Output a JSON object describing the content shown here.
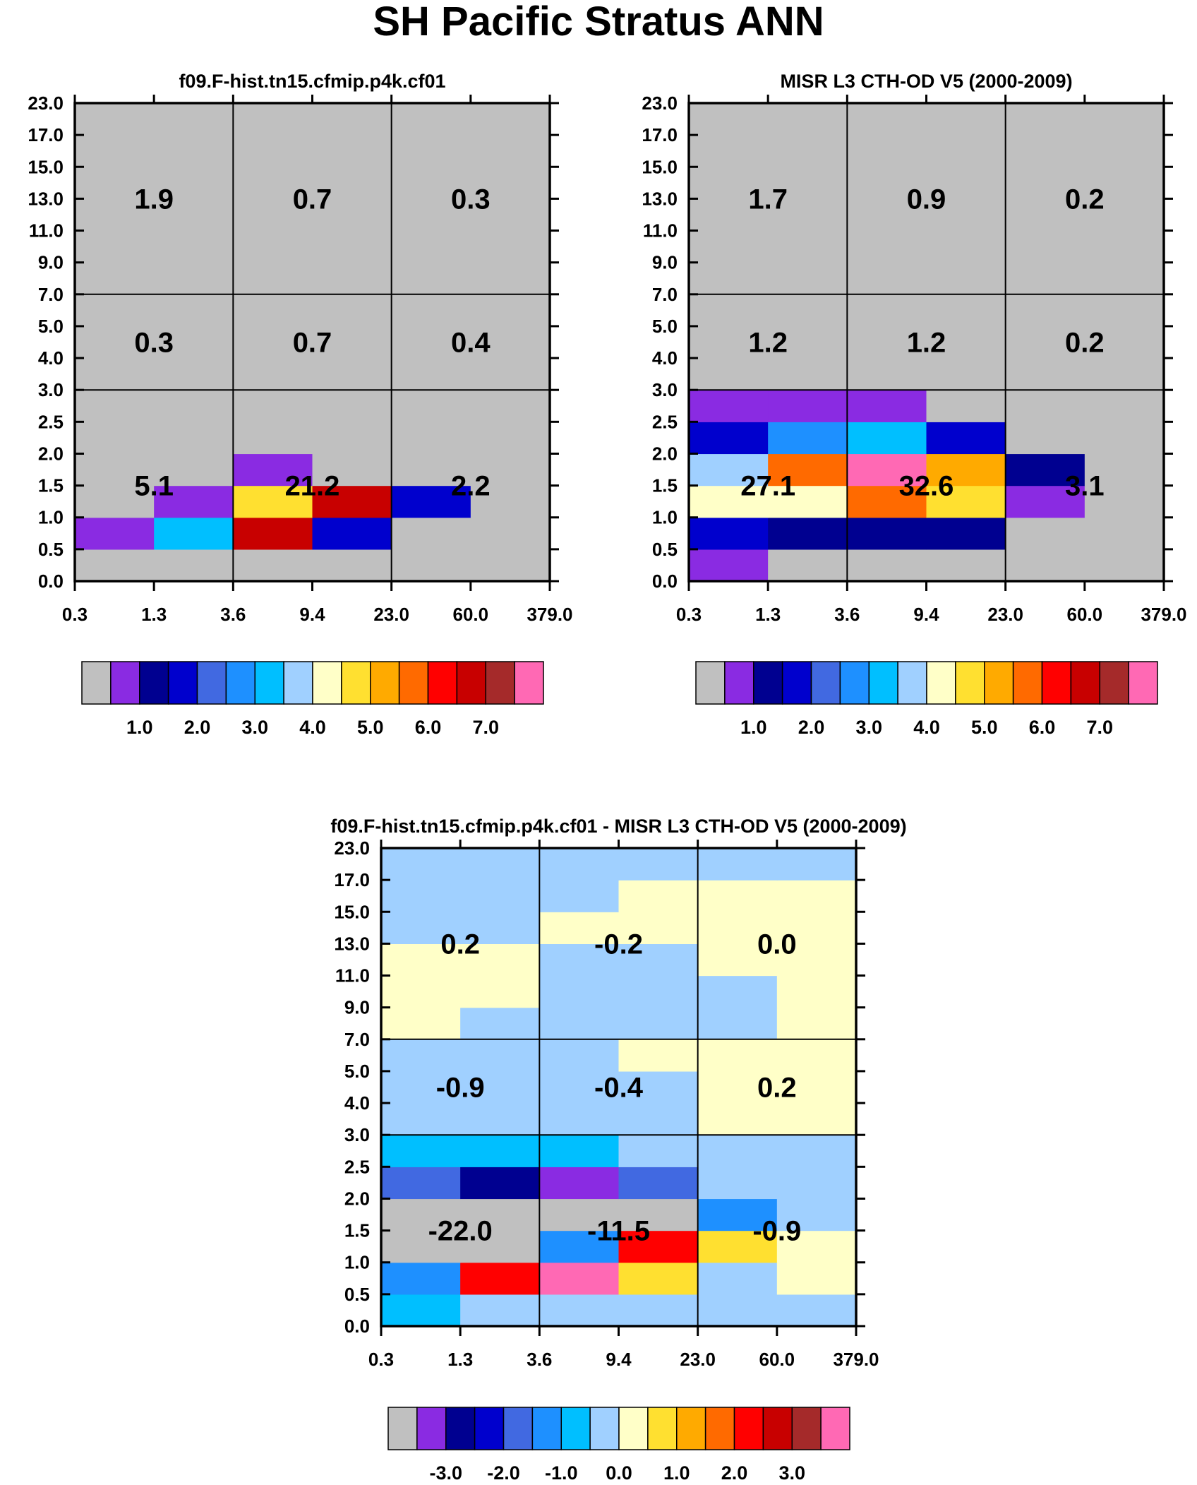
{
  "figure": {
    "title": "SH Pacific Stratus ANN"
  },
  "axes": {
    "x_ticks": [
      "0.3",
      "1.3",
      "3.6",
      "9.4",
      "23.0",
      "60.0",
      "379.0"
    ],
    "y_ticks": [
      "0.0",
      "0.5",
      "1.0",
      "1.5",
      "2.0",
      "2.5",
      "3.0",
      "4.0",
      "5.0",
      "7.0",
      "9.0",
      "11.0",
      "13.0",
      "15.0",
      "17.0",
      "23.0"
    ]
  },
  "colors": {
    "missing": "#c0c0c0",
    "palette": [
      "#c0c0c0",
      "#8a2be2",
      "#000090",
      "#0000cd",
      "#4169e1",
      "#1e90ff",
      "#00bfff",
      "#a0d0ff",
      "#ffffc8",
      "#ffe030",
      "#ffaa00",
      "#ff6a00",
      "#ff0000",
      "#c80000",
      "#a52a2a",
      "#ff69b4"
    ]
  },
  "chart_data": [
    {
      "type": "heatmap",
      "title": "f09.F-hist.tn15.cfmip.p4k.cf01",
      "xlabel": "",
      "ylabel": "",
      "x_bins": [
        "0.3",
        "1.3",
        "3.6",
        "9.4",
        "23.0",
        "60.0",
        "379.0"
      ],
      "y_bins": [
        "0.0",
        "0.5",
        "1.0",
        "1.5",
        "2.0",
        "2.5",
        "3.0",
        "4.0",
        "5.0",
        "7.0",
        "9.0",
        "11.0",
        "13.0",
        "15.0",
        "17.0",
        "23.0"
      ],
      "cells_colour_index_bottom_to_top": [
        [
          0,
          0,
          0,
          0,
          0,
          0
        ],
        [
          1,
          6,
          13,
          3,
          0,
          0
        ],
        [
          0,
          1,
          9,
          13,
          3,
          0
        ],
        [
          0,
          0,
          1,
          0,
          0,
          0
        ],
        [
          0,
          0,
          0,
          0,
          0,
          0
        ],
        [
          0,
          0,
          0,
          0,
          0,
          0
        ],
        [
          0,
          0,
          0,
          0,
          0,
          0
        ],
        [
          0,
          0,
          0,
          0,
          0,
          0
        ],
        [
          0,
          0,
          0,
          0,
          0,
          0
        ],
        [
          0,
          0,
          0,
          0,
          0,
          0
        ],
        [
          0,
          0,
          0,
          0,
          0,
          0
        ],
        [
          0,
          0,
          0,
          0,
          0,
          0
        ],
        [
          0,
          0,
          0,
          0,
          0,
          0
        ],
        [
          0,
          0,
          0,
          0,
          0,
          0
        ],
        [
          0,
          0,
          0,
          0,
          0,
          0
        ]
      ],
      "group_labels": [
        {
          "values": [
            "5.1",
            "21.2",
            "2.2"
          ]
        },
        {
          "values": [
            "0.3",
            "0.7",
            "0.4"
          ]
        },
        {
          "values": [
            "1.9",
            "0.7",
            "0.3"
          ]
        }
      ],
      "colorbar": {
        "levels": [
          "1.0",
          "2.0",
          "3.0",
          "4.0",
          "5.0",
          "6.0",
          "7.0"
        ],
        "colour_index": [
          0,
          1,
          2,
          3,
          4,
          5,
          6,
          7,
          8,
          9,
          10,
          11,
          12,
          13,
          14,
          15
        ]
      }
    },
    {
      "type": "heatmap",
      "title": "MISR L3 CTH-OD V5 (2000-2009)",
      "xlabel": "",
      "ylabel": "",
      "x_bins": [
        "0.3",
        "1.3",
        "3.6",
        "9.4",
        "23.0",
        "60.0",
        "379.0"
      ],
      "y_bins": [
        "0.0",
        "0.5",
        "1.0",
        "1.5",
        "2.0",
        "2.5",
        "3.0",
        "4.0",
        "5.0",
        "7.0",
        "9.0",
        "11.0",
        "13.0",
        "15.0",
        "17.0",
        "23.0"
      ],
      "cells_colour_index_bottom_to_top": [
        [
          1,
          0,
          0,
          0,
          0,
          0
        ],
        [
          3,
          2,
          2,
          2,
          0,
          0
        ],
        [
          8,
          8,
          11,
          9,
          1,
          0
        ],
        [
          7,
          11,
          15,
          10,
          2,
          0
        ],
        [
          3,
          5,
          6,
          3,
          0,
          0
        ],
        [
          1,
          1,
          1,
          0,
          0,
          0
        ],
        [
          0,
          0,
          0,
          0,
          0,
          0
        ],
        [
          0,
          0,
          0,
          0,
          0,
          0
        ],
        [
          0,
          0,
          0,
          0,
          0,
          0
        ],
        [
          0,
          0,
          0,
          0,
          0,
          0
        ],
        [
          0,
          0,
          0,
          0,
          0,
          0
        ],
        [
          0,
          0,
          0,
          0,
          0,
          0
        ],
        [
          0,
          0,
          0,
          0,
          0,
          0
        ],
        [
          0,
          0,
          0,
          0,
          0,
          0
        ],
        [
          0,
          0,
          0,
          0,
          0,
          0
        ]
      ],
      "group_labels": [
        {
          "values": [
            "27.1",
            "32.6",
            "3.1"
          ]
        },
        {
          "values": [
            "1.2",
            "1.2",
            "0.2"
          ]
        },
        {
          "values": [
            "1.7",
            "0.9",
            "0.2"
          ]
        }
      ],
      "colorbar": {
        "levels": [
          "1.0",
          "2.0",
          "3.0",
          "4.0",
          "5.0",
          "6.0",
          "7.0"
        ],
        "colour_index": [
          0,
          1,
          2,
          3,
          4,
          5,
          6,
          7,
          8,
          9,
          10,
          11,
          12,
          13,
          14,
          15
        ]
      }
    },
    {
      "type": "heatmap",
      "title": "f09.F-hist.tn15.cfmip.p4k.cf01 - MISR L3 CTH-OD V5 (2000-2009)",
      "xlabel": "",
      "ylabel": "",
      "x_bins": [
        "0.3",
        "1.3",
        "3.6",
        "9.4",
        "23.0",
        "60.0",
        "379.0"
      ],
      "y_bins": [
        "0.0",
        "0.5",
        "1.0",
        "1.5",
        "2.0",
        "2.5",
        "3.0",
        "4.0",
        "5.0",
        "7.0",
        "9.0",
        "11.0",
        "13.0",
        "15.0",
        "17.0",
        "23.0"
      ],
      "cells_colour_index_bottom_to_top": [
        [
          6,
          7,
          7,
          7,
          7,
          7
        ],
        [
          5,
          12,
          15,
          9,
          7,
          8
        ],
        [
          0,
          0,
          5,
          12,
          9,
          8
        ],
        [
          0,
          0,
          0,
          0,
          5,
          7
        ],
        [
          4,
          2,
          1,
          4,
          7,
          7
        ],
        [
          6,
          6,
          6,
          7,
          7,
          7
        ],
        [
          7,
          7,
          7,
          7,
          8,
          8
        ],
        [
          7,
          7,
          7,
          7,
          8,
          8
        ],
        [
          7,
          7,
          7,
          8,
          8,
          8
        ],
        [
          8,
          7,
          7,
          7,
          7,
          8
        ],
        [
          8,
          8,
          7,
          7,
          7,
          8
        ],
        [
          8,
          8,
          7,
          7,
          8,
          8
        ],
        [
          7,
          7,
          8,
          8,
          8,
          8
        ],
        [
          7,
          7,
          7,
          8,
          8,
          8
        ],
        [
          7,
          7,
          7,
          7,
          7,
          7
        ]
      ],
      "group_labels": [
        {
          "values": [
            "-22.0",
            "-11.5",
            "-0.9"
          ]
        },
        {
          "values": [
            "-0.9",
            "-0.4",
            "0.2"
          ]
        },
        {
          "values": [
            "0.2",
            "-0.2",
            "0.0"
          ]
        }
      ],
      "colorbar": {
        "levels": [
          "-3.0",
          "-2.0",
          "-1.0",
          "0.0",
          "1.0",
          "2.0",
          "3.0"
        ],
        "colour_index": [
          0,
          1,
          2,
          3,
          4,
          5,
          6,
          7,
          8,
          9,
          10,
          11,
          12,
          13,
          14,
          15
        ]
      }
    }
  ]
}
